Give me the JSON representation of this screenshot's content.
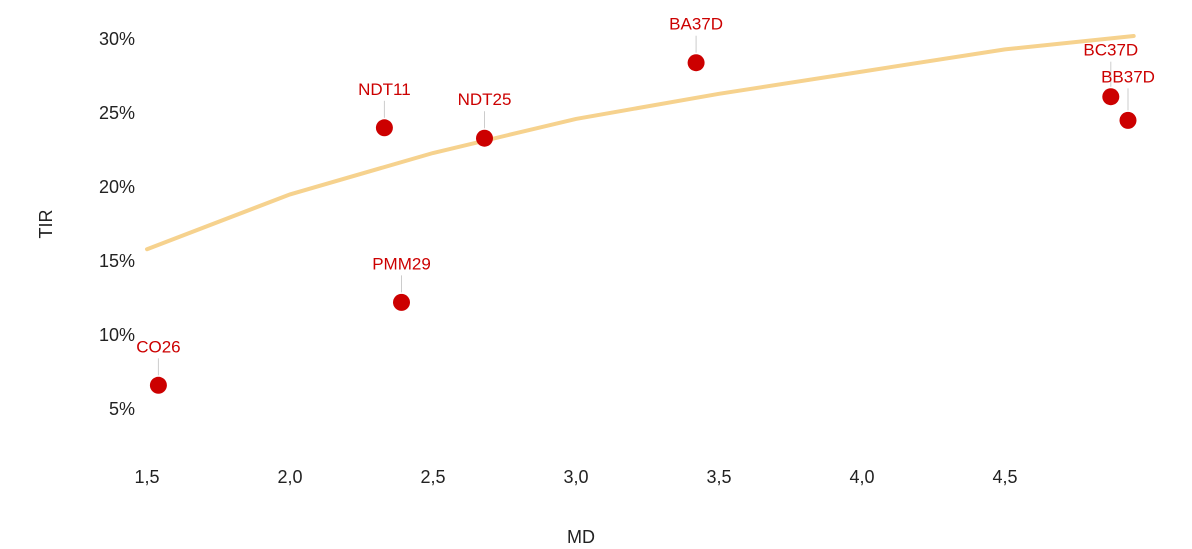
{
  "chart_data": {
    "type": "scatter",
    "title": "",
    "xlabel": "MD",
    "ylabel": "TIR",
    "xlim": [
      1.4,
      5.05
    ],
    "ylim": [
      2.5,
      32
    ],
    "x_ticks": [
      1.5,
      2.0,
      2.5,
      3.0,
      3.5,
      4.0,
      4.5
    ],
    "x_tick_labels": [
      "1,5",
      "2,0",
      "2,5",
      "3,0",
      "3,5",
      "4,0",
      "4,5"
    ],
    "y_ticks": [
      5,
      10,
      15,
      20,
      25,
      30
    ],
    "y_tick_labels": [
      "5%",
      "10%",
      "15%",
      "20%",
      "25%",
      "30%"
    ],
    "grid": false,
    "legend": "none",
    "colors": {
      "points": "#cc0000",
      "trend": "#f6d28e",
      "text": "#222222",
      "leader": "#cccccc"
    },
    "points": [
      {
        "label": "CO26",
        "x": 1.54,
        "y": 6.6
      },
      {
        "label": "NDT11",
        "x": 2.33,
        "y": 24.0
      },
      {
        "label": "PMM29",
        "x": 2.39,
        "y": 12.2
      },
      {
        "label": "NDT25",
        "x": 2.68,
        "y": 23.3
      },
      {
        "label": "BA37D",
        "x": 3.42,
        "y": 28.4
      },
      {
        "label": "BC37D",
        "x": 4.87,
        "y": 26.1
      },
      {
        "label": "BB37D",
        "x": 4.93,
        "y": 24.5
      }
    ],
    "trendline": {
      "type": "logarithmic",
      "x": [
        1.5,
        2.0,
        2.5,
        3.0,
        3.5,
        4.0,
        4.5,
        4.95
      ],
      "y": [
        15.8,
        19.5,
        22.3,
        24.6,
        26.3,
        27.8,
        29.3,
        30.2
      ]
    }
  }
}
